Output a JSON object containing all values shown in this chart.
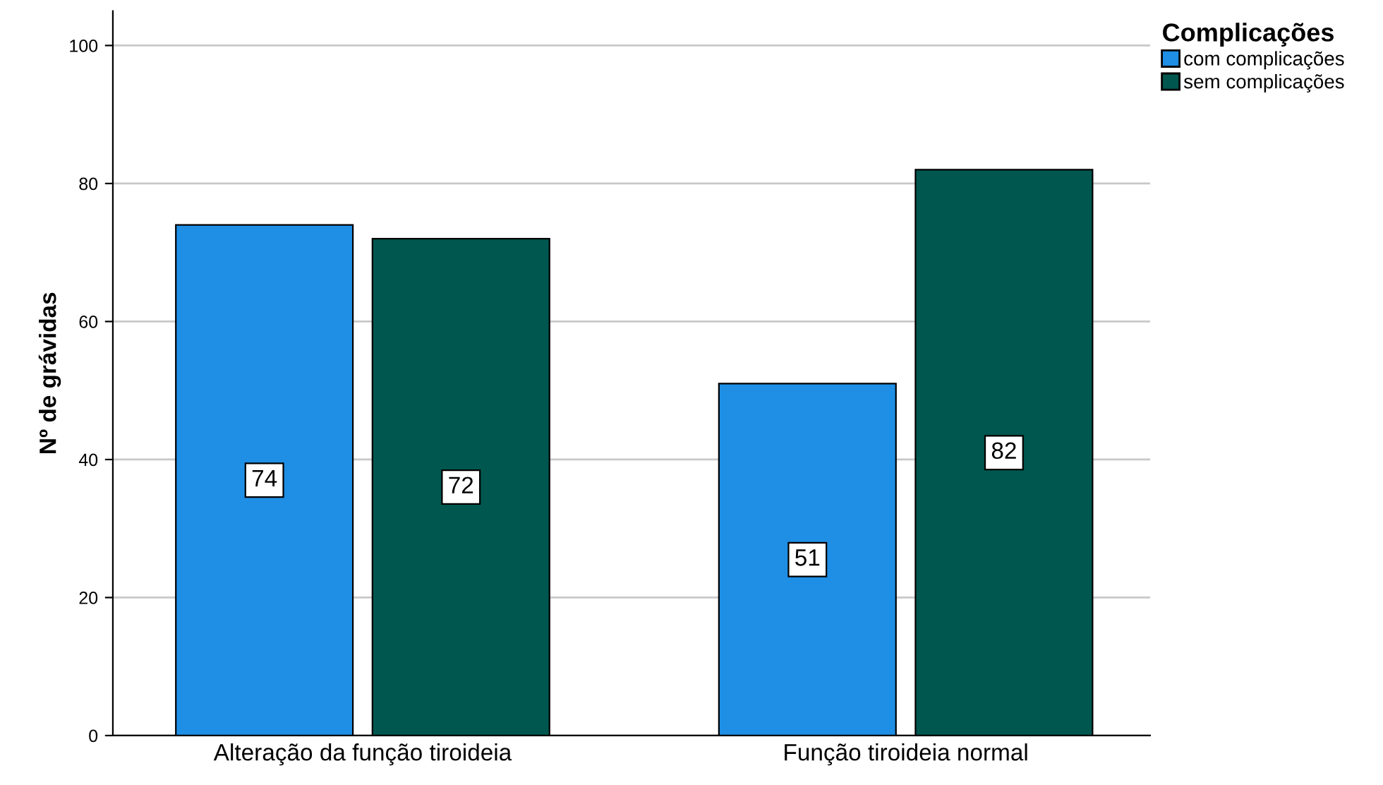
{
  "chart_data": {
    "type": "bar",
    "ylabel": "Nº de grávidas",
    "legend_title": "Complicações",
    "categories": [
      "Alteração da função tiroideia",
      "Função tiroideia normal"
    ],
    "series": [
      {
        "name": "com complicações",
        "color": "#1f8fe6",
        "values": [
          74,
          51
        ]
      },
      {
        "name": "sem complicações",
        "color": "#00574f",
        "values": [
          72,
          82
        ]
      }
    ],
    "ylim": [
      0,
      105
    ],
    "yticks": [
      0,
      20,
      40,
      60,
      80,
      100
    ],
    "grid": "y",
    "legend": "top right",
    "data_labels": true
  }
}
